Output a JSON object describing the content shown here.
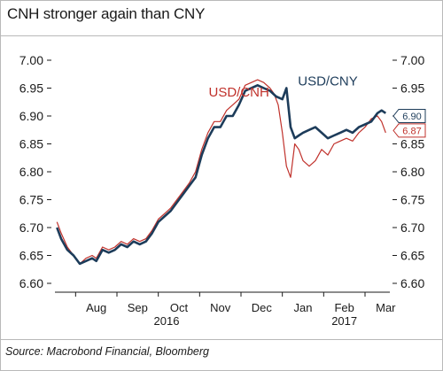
{
  "header": {
    "title": "CNH stronger again than CNY"
  },
  "footer": {
    "source": "Source: Macrobond Financial, Bloomberg"
  },
  "colors": {
    "cnh": "#c0312b",
    "cny": "#1d3c5a",
    "axis": "#1a1a1a"
  },
  "chart_data": {
    "type": "line",
    "title": "CNH stronger again than CNY",
    "xlabel": "",
    "ylabel": "",
    "ylim": [
      6.6,
      7.0
    ],
    "y_ticks": [
      7.0,
      6.95,
      6.9,
      6.85,
      6.8,
      6.75,
      6.7,
      6.65,
      6.6
    ],
    "x_ticks": [
      "Aug",
      "Sep",
      "Oct",
      "Nov",
      "Dec",
      "Jan",
      "Feb",
      "Mar"
    ],
    "x_ticks_pos": [
      1.0,
      2.0,
      3.0,
      4.0,
      5.0,
      6.0,
      7.0,
      8.0
    ],
    "year_labels": [
      {
        "label": "2016",
        "x": 2.7
      },
      {
        "label": "2017",
        "x": 7.0
      }
    ],
    "x_unit": "months since start of July 2016",
    "series": [
      {
        "name": "USD/CNY",
        "annotation_x": 6.6,
        "annotation_y": 6.955,
        "last_value": "6.90",
        "x": [
          0.05,
          0.15,
          0.3,
          0.45,
          0.6,
          0.75,
          0.9,
          1.0,
          1.15,
          1.3,
          1.45,
          1.6,
          1.75,
          1.9,
          2.05,
          2.2,
          2.35,
          2.5,
          2.65,
          2.8,
          2.95,
          3.1,
          3.25,
          3.4,
          3.55,
          3.7,
          3.85,
          4.0,
          4.15,
          4.3,
          4.45,
          4.6,
          4.75,
          4.9,
          5.05,
          5.2,
          5.35,
          5.5,
          5.6,
          5.7,
          5.8,
          5.9,
          6.0,
          6.15,
          6.3,
          6.45,
          6.6,
          6.75,
          6.9,
          7.05,
          7.2,
          7.35,
          7.5,
          7.65,
          7.8,
          7.9,
          8.0
        ],
        "values": [
          6.7,
          6.68,
          6.66,
          6.65,
          6.635,
          6.64,
          6.645,
          6.64,
          6.66,
          6.655,
          6.66,
          6.67,
          6.665,
          6.675,
          6.67,
          6.675,
          6.69,
          6.71,
          6.72,
          6.73,
          6.745,
          6.76,
          6.775,
          6.79,
          6.83,
          6.86,
          6.88,
          6.88,
          6.9,
          6.9,
          6.92,
          6.945,
          6.95,
          6.955,
          6.95,
          6.945,
          6.935,
          6.93,
          6.95,
          6.88,
          6.86,
          6.865,
          6.87,
          6.875,
          6.88,
          6.87,
          6.86,
          6.865,
          6.87,
          6.875,
          6.87,
          6.88,
          6.885,
          6.89,
          6.905,
          6.91,
          6.905
        ]
      },
      {
        "name": "USD/CNH",
        "annotation_x": 4.45,
        "annotation_y": 6.935,
        "last_value": "6.87",
        "x": [
          0.05,
          0.15,
          0.3,
          0.45,
          0.6,
          0.75,
          0.9,
          1.0,
          1.15,
          1.3,
          1.45,
          1.6,
          1.75,
          1.9,
          2.05,
          2.2,
          2.35,
          2.5,
          2.65,
          2.8,
          2.95,
          3.1,
          3.25,
          3.4,
          3.55,
          3.7,
          3.85,
          4.0,
          4.15,
          4.3,
          4.45,
          4.6,
          4.75,
          4.9,
          5.05,
          5.2,
          5.3,
          5.4,
          5.5,
          5.6,
          5.7,
          5.8,
          5.9,
          6.0,
          6.15,
          6.3,
          6.45,
          6.6,
          6.75,
          6.9,
          7.05,
          7.2,
          7.35,
          7.5,
          7.65,
          7.8,
          7.9,
          8.0
        ],
        "values": [
          6.71,
          6.69,
          6.665,
          6.65,
          6.635,
          6.645,
          6.65,
          6.645,
          6.665,
          6.66,
          6.665,
          6.675,
          6.67,
          6.68,
          6.675,
          6.68,
          6.695,
          6.715,
          6.725,
          6.735,
          6.75,
          6.765,
          6.78,
          6.8,
          6.84,
          6.87,
          6.89,
          6.89,
          6.91,
          6.92,
          6.93,
          6.955,
          6.96,
          6.965,
          6.96,
          6.95,
          6.94,
          6.92,
          6.87,
          6.81,
          6.79,
          6.85,
          6.84,
          6.82,
          6.81,
          6.82,
          6.84,
          6.83,
          6.85,
          6.855,
          6.86,
          6.855,
          6.87,
          6.88,
          6.895,
          6.9,
          6.89,
          6.87
        ]
      }
    ]
  }
}
